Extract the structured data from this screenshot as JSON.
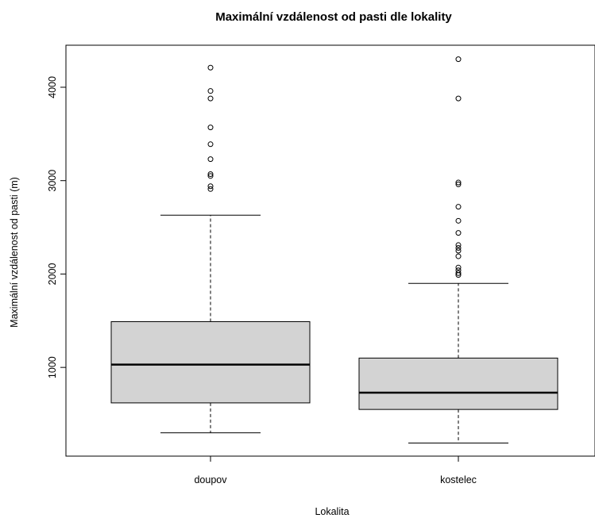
{
  "chart_data": {
    "type": "boxplot",
    "title": "Maximální vzdálenost od pasti dle lokality",
    "xlabel": "Lokalita",
    "ylabel": "Maximální vzdálenost od pasti (m)",
    "y_ticks": [
      1000,
      2000,
      3000,
      4000
    ],
    "ylim": [
      50,
      4450
    ],
    "grid": false,
    "box_fill": "#d3d3d3",
    "categories": [
      "doupov",
      "kostelec"
    ],
    "boxes": [
      {
        "category": "doupov",
        "whisker_low": 300,
        "q1": 620,
        "median": 1030,
        "q3": 1490,
        "whisker_high": 2630,
        "outliers": [
          2910,
          2940,
          3050,
          3070,
          3230,
          3390,
          3570,
          3880,
          3960,
          4210
        ]
      },
      {
        "category": "kostelec",
        "whisker_low": 190,
        "q1": 550,
        "median": 730,
        "q3": 1100,
        "whisker_high": 1900,
        "outliers": [
          1990,
          2010,
          2040,
          2070,
          2190,
          2250,
          2280,
          2310,
          2440,
          2570,
          2720,
          2960,
          2980,
          3880,
          4300
        ]
      }
    ]
  }
}
